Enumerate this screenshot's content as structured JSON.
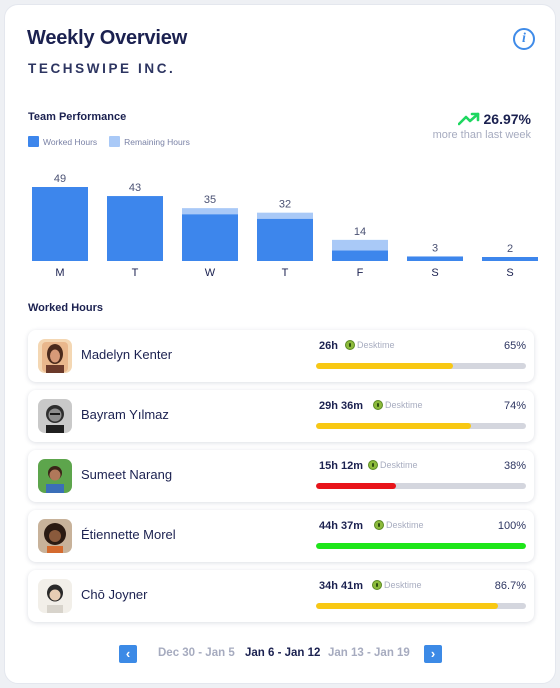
{
  "header": {
    "title": "Weekly Overview",
    "company": "TECHSWIPE INC.",
    "info_icon": "i"
  },
  "team_performance": {
    "label": "Team Performance",
    "legend": [
      {
        "name": "Worked Hours",
        "color": "#3d86ec"
      },
      {
        "name": "Remaining Hours",
        "color": "#a9c9f7"
      }
    ],
    "trend_value": "26.97%",
    "trend_caption": "more than last week",
    "trend_color": "#1ed760"
  },
  "chart_data": {
    "type": "bar",
    "stacked": true,
    "categories": [
      "M",
      "T",
      "W",
      "T",
      "F",
      "S",
      "S"
    ],
    "totals": [
      49,
      43,
      35,
      32,
      14,
      3,
      2
    ],
    "series": [
      {
        "name": "Worked Hours",
        "color": "#3d86ec",
        "values": [
          49,
          43,
          31,
          28,
          7,
          3,
          2
        ]
      },
      {
        "name": "Remaining Hours",
        "color": "#a9c9f7",
        "values": [
          0,
          0,
          4,
          4,
          7,
          0,
          0
        ]
      }
    ],
    "ylim": [
      0,
      49
    ]
  },
  "worked_hours": {
    "label": "Worked Hours",
    "source_label": "Desktime",
    "rows": [
      {
        "name": "Madelyn Kenter",
        "hours": "26h",
        "percent": "65%",
        "fill": 0.65,
        "bar_color": "#f8c813",
        "avatar": "avatar-madelyn"
      },
      {
        "name": "Bayram Yılmaz",
        "hours": "29h 36m",
        "percent": "74%",
        "fill": 0.74,
        "bar_color": "#f8c813",
        "avatar": "avatar-bayram"
      },
      {
        "name": "Sumeet Narang",
        "hours": "15h 12m",
        "percent": "38%",
        "fill": 0.38,
        "bar_color": "#e8141a",
        "avatar": "avatar-sumeet"
      },
      {
        "name": "Étiennette Morel",
        "hours": "44h 37m",
        "percent": "100%",
        "fill": 1.0,
        "bar_color": "#1ee619",
        "avatar": "avatar-etiennette"
      },
      {
        "name": "Chō Joyner",
        "hours": "34h 41m",
        "percent": "86.7%",
        "fill": 0.867,
        "bar_color": "#f8c813",
        "avatar": "avatar-cho"
      }
    ]
  },
  "pager": {
    "prev_icon": "‹",
    "next_icon": "›",
    "ranges": [
      {
        "label": "Dec 30 - Jan 5",
        "active": false
      },
      {
        "label": "Jan 6 - Jan 12",
        "active": true
      },
      {
        "label": "Jan 13 - Jan 19",
        "active": false
      }
    ]
  }
}
